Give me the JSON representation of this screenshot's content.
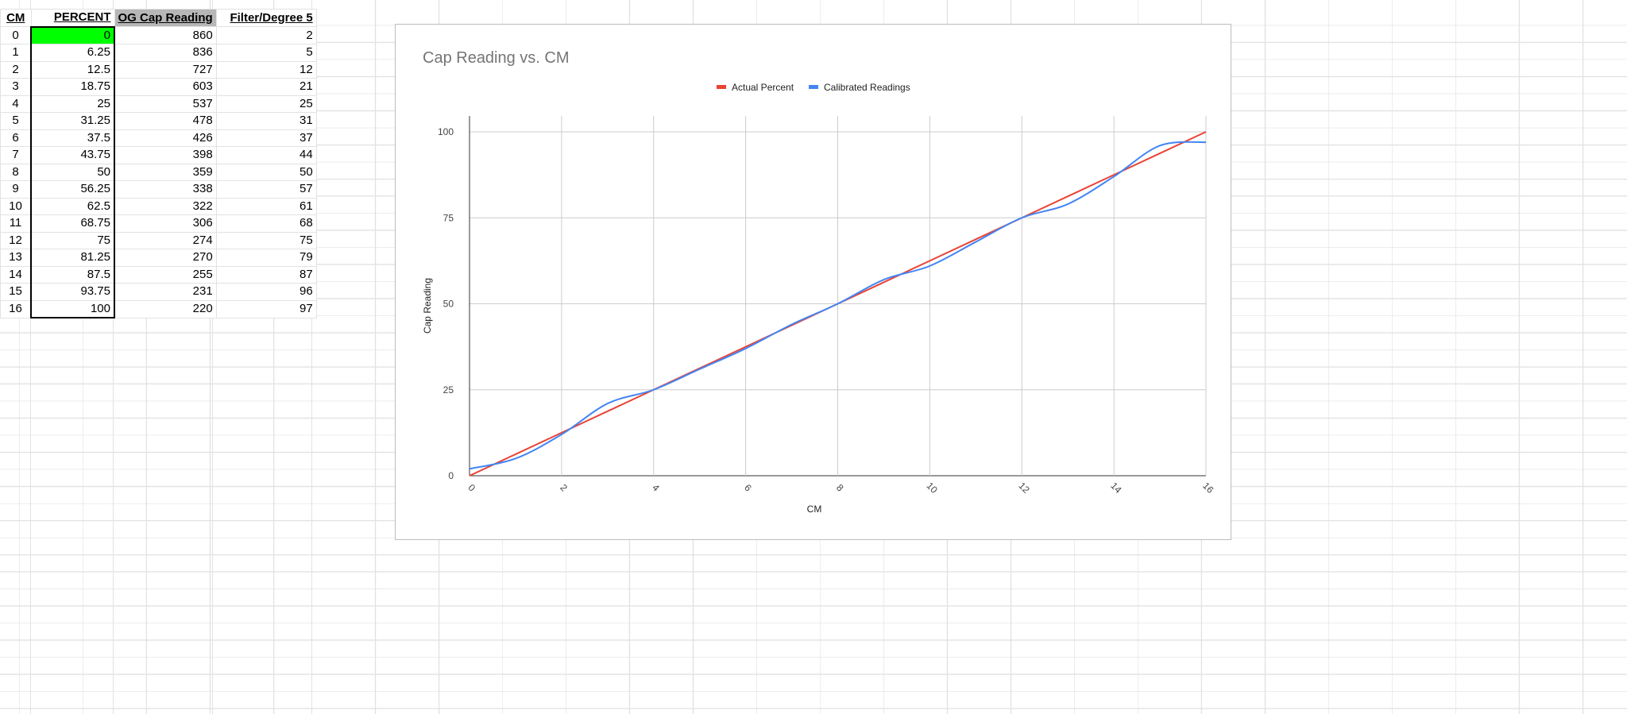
{
  "sheet": {
    "headers": [
      "CM",
      "PERCENT",
      "OG Cap Reading",
      "Filter/Degree 5"
    ],
    "rows": [
      [
        "0",
        "0",
        "860",
        "2"
      ],
      [
        "1",
        "6.25",
        "836",
        "5"
      ],
      [
        "2",
        "12.5",
        "727",
        "12"
      ],
      [
        "3",
        "18.75",
        "603",
        "21"
      ],
      [
        "4",
        "25",
        "537",
        "25"
      ],
      [
        "5",
        "31.25",
        "478",
        "31"
      ],
      [
        "6",
        "37.5",
        "426",
        "37"
      ],
      [
        "7",
        "43.75",
        "398",
        "44"
      ],
      [
        "8",
        "50",
        "359",
        "50"
      ],
      [
        "9",
        "56.25",
        "338",
        "57"
      ],
      [
        "10",
        "62.5",
        "322",
        "61"
      ],
      [
        "11",
        "68.75",
        "306",
        "68"
      ],
      [
        "12",
        "75",
        "274",
        "75"
      ],
      [
        "13",
        "81.25",
        "270",
        "79"
      ],
      [
        "14",
        "87.5",
        "255",
        "87"
      ],
      [
        "15",
        "93.75",
        "231",
        "96"
      ],
      [
        "16",
        "100",
        "220",
        "97"
      ]
    ],
    "highlight_color": "#00ff00"
  },
  "chart_data": {
    "type": "line",
    "title": "Cap Reading vs. CM",
    "xlabel": "CM",
    "ylabel": "Cap Reading",
    "x": [
      0,
      1,
      2,
      3,
      4,
      5,
      6,
      7,
      8,
      9,
      10,
      11,
      12,
      13,
      14,
      15,
      16
    ],
    "xlim": [
      0,
      16
    ],
    "ylim": [
      0,
      100
    ],
    "xticks": [
      "0",
      "2",
      "4",
      "6",
      "8",
      "10",
      "12",
      "14",
      "16"
    ],
    "yticks": [
      "0",
      "25",
      "50",
      "75",
      "100"
    ],
    "grid": true,
    "legend_position": "top-right",
    "series": [
      {
        "name": "Actual Percent",
        "color": "#ea4335",
        "smooth": false,
        "values": [
          0,
          6.25,
          12.5,
          18.75,
          25,
          31.25,
          37.5,
          43.75,
          50,
          56.25,
          62.5,
          68.75,
          75,
          81.25,
          87.5,
          93.75,
          100
        ]
      },
      {
        "name": "Calibrated Readings",
        "color": "#4285f4",
        "smooth": true,
        "values": [
          2,
          5,
          12,
          21,
          25,
          31,
          37,
          44,
          50,
          57,
          61,
          68,
          75,
          79,
          87,
          96,
          97
        ]
      }
    ]
  }
}
